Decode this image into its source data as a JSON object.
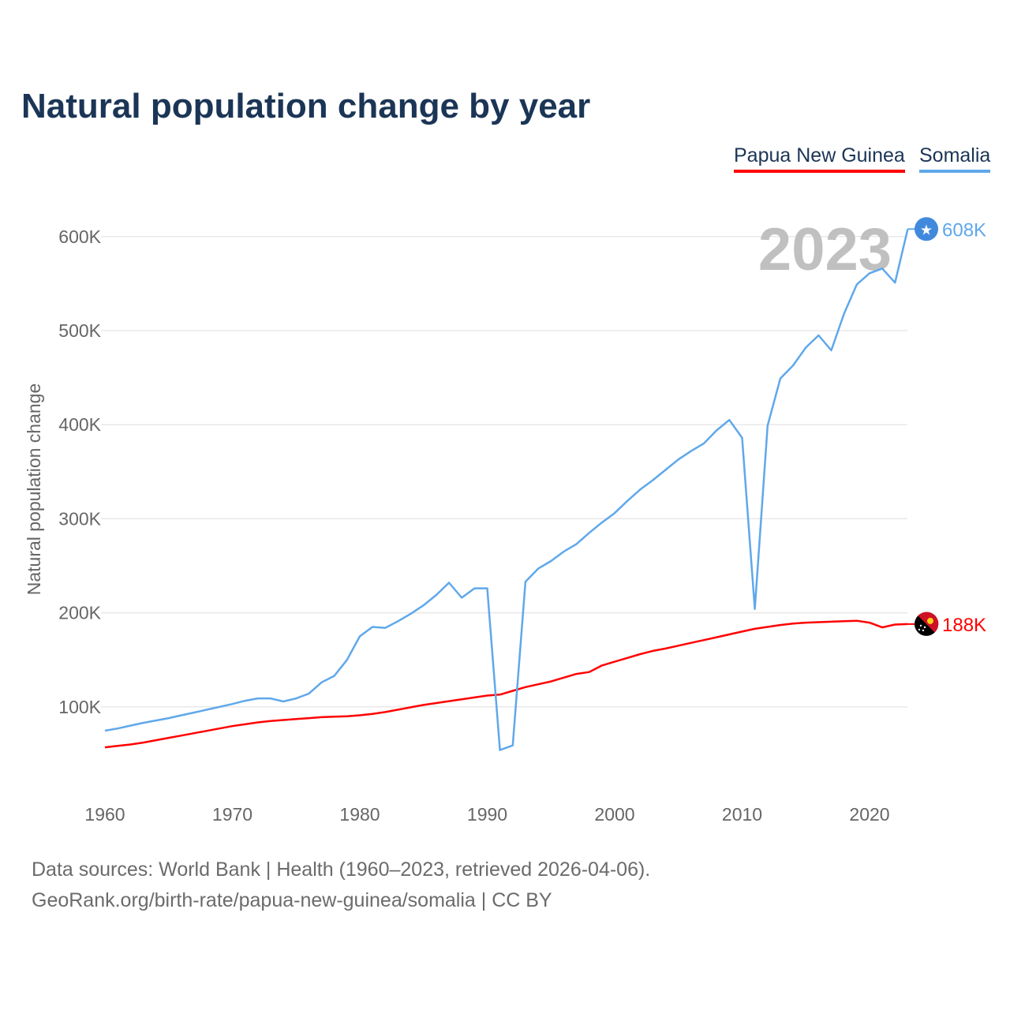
{
  "chart_data": {
    "type": "line",
    "title": "Natural population change by year",
    "xlabel": "",
    "ylabel": "Natural population change",
    "xlim": [
      1960,
      2023
    ],
    "ylim": [
      0,
      650000
    ],
    "grid": true,
    "legend_placement": "top-right",
    "x_ticks": [
      "1960",
      "1970",
      "1980",
      "1990",
      "2000",
      "2010",
      "2020"
    ],
    "y_ticks": [
      {
        "value": 100000,
        "label": "100K"
      },
      {
        "value": 200000,
        "label": "200K"
      },
      {
        "value": 300000,
        "label": "300K"
      },
      {
        "value": 400000,
        "label": "400K"
      },
      {
        "value": 500000,
        "label": "500K"
      },
      {
        "value": 600000,
        "label": "600K"
      }
    ],
    "year_watermark": "2023",
    "x_start": 1960,
    "series": [
      {
        "name": "Papua New Guinea",
        "color": "#ff0000",
        "end_label": "188K",
        "values": [
          57000,
          58500,
          60000,
          62000,
          64500,
          67000,
          69500,
          72000,
          74500,
          77000,
          79500,
          81500,
          83500,
          85000,
          86000,
          87000,
          88000,
          89000,
          89500,
          90000,
          91000,
          92500,
          94500,
          97000,
          99500,
          102000,
          104000,
          106000,
          108000,
          110000,
          112000,
          113000,
          117000,
          121000,
          124000,
          127000,
          131000,
          135000,
          137000,
          144000,
          148000,
          152000,
          156000,
          159500,
          162000,
          165000,
          168000,
          171000,
          174000,
          177000,
          180000,
          183000,
          185000,
          187000,
          188500,
          189500,
          190000,
          190500,
          191000,
          191500,
          189500,
          184500,
          187500,
          188000
        ]
      },
      {
        "name": "Somalia",
        "color": "#5fa8ea",
        "end_label": "608K",
        "values": [
          74700,
          77000,
          80000,
          83000,
          85500,
          88000,
          91000,
          94000,
          97000,
          100000,
          103000,
          106500,
          109000,
          109000,
          105700,
          109000,
          114000,
          126000,
          133000,
          150000,
          175000,
          185000,
          184000,
          191000,
          199000,
          208000,
          219000,
          232000,
          216000,
          226000,
          226000,
          54000,
          59000,
          233000,
          247000,
          255000,
          265000,
          273000,
          285000,
          296000,
          306000,
          319000,
          331000,
          341000,
          352000,
          363000,
          372000,
          380000,
          394000,
          405000,
          386000,
          204000,
          399000,
          449000,
          463000,
          482000,
          495000,
          479000,
          518000,
          549000,
          561000,
          566000,
          551000,
          608000
        ]
      }
    ]
  },
  "footer": {
    "line1": "Data sources: World Bank | Health (1960–2023, retrieved 2026-04-06).",
    "line2": "GeoRank.org/birth-rate/papua-new-guinea/somalia | CC BY"
  }
}
